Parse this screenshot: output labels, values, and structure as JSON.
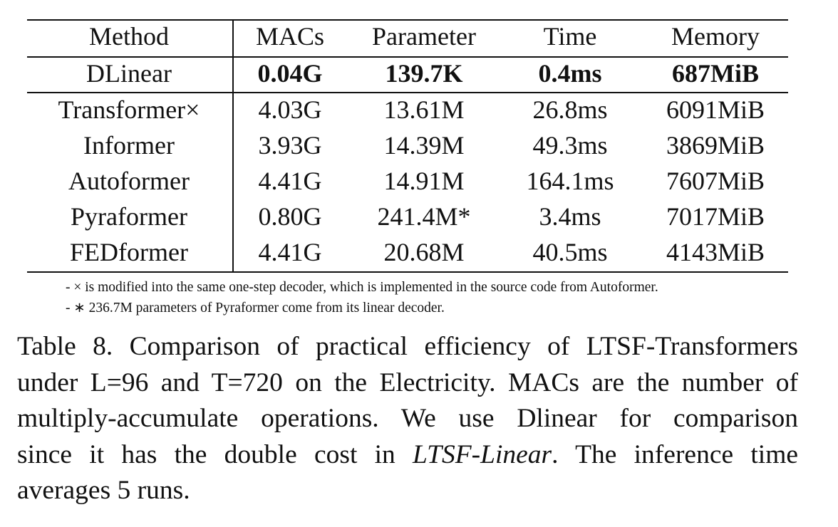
{
  "table": {
    "header": [
      "Method",
      "MACs",
      "Parameter",
      "Time",
      "Memory"
    ],
    "rows": [
      [
        "DLinear",
        "0.04G",
        "139.7K",
        "0.4ms",
        "687MiB"
      ],
      [
        "Transformer×",
        "4.03G",
        "13.61M",
        "26.8ms",
        "6091MiB"
      ],
      [
        "Informer",
        "3.93G",
        "14.39M",
        "49.3ms",
        "3869MiB"
      ],
      [
        "Autoformer",
        "4.41G",
        "14.91M",
        "164.1ms",
        "7607MiB"
      ],
      [
        "Pyraformer",
        "0.80G",
        "241.4M*",
        "3.4ms",
        "7017MiB"
      ],
      [
        "FEDformer",
        "4.41G",
        "20.68M",
        "40.5ms",
        "4143MiB"
      ]
    ],
    "notes": [
      "- × is modified into the same one-step decoder, which is implemented in the source code from Autoformer.",
      "- ∗ 236.7M parameters of Pyraformer come from its linear decoder."
    ]
  },
  "caption": {
    "lines": [
      [
        "Table 8. Comparison of practical efficiency of LTSF-Transformers"
      ],
      [
        "under L=96 and T=720 on the Electricity. MACs are the number of"
      ],
      [
        "multiply-accumulate operations. We use Dlinear for comparison"
      ],
      [
        "since it has the double cost in ",
        "LTSF-Linear",
        ". The inference time"
      ],
      [
        "averages 5 runs."
      ]
    ]
  }
}
